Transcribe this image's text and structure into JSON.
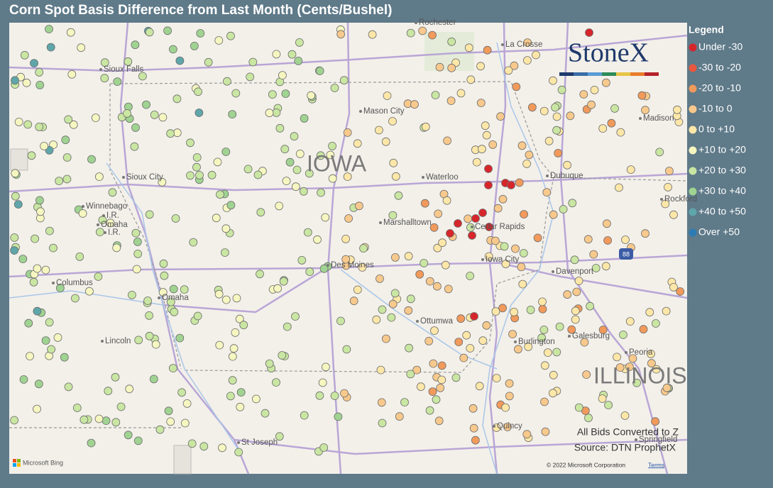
{
  "header": {
    "title": "Corn Spot Basis Difference from Last Month (Cents/Bushel)"
  },
  "legend": {
    "title": "Legend",
    "items": [
      {
        "label": "Under -30",
        "color": "#d7262b"
      },
      {
        "label": "-30 to -20",
        "color": "#e9573d"
      },
      {
        "label": "-20 to -10",
        "color": "#f19a5b"
      },
      {
        "label": "-10 to 0",
        "color": "#f8c98c"
      },
      {
        "label": "0 to +10",
        "color": "#fde7a8"
      },
      {
        "label": "+10 to +20",
        "color": "#f6f6c0"
      },
      {
        "label": "+20 to +30",
        "color": "#c9e6a2"
      },
      {
        "label": "+30 to +40",
        "color": "#a0d391"
      },
      {
        "label": "+40 to +50",
        "color": "#5fa6aa"
      },
      {
        "label": "Over +50",
        "color": "#2d7bb5"
      }
    ]
  },
  "map": {
    "logo": "StoneX",
    "cities": [
      "Rochester",
      "La Crosse",
      "Sioux Falls",
      "Mason City",
      "Madison",
      "Sioux City",
      "Waterloo",
      "Dubuque",
      "Rockford",
      "Winnebago",
      "I.R.",
      "Omaha",
      "I.R.",
      "Marshalltown",
      "Cedar Rapids",
      "Columbus",
      "Des Moines",
      "Iowa City",
      "Davenport",
      "Omaha",
      "Ottumwa",
      "Galesburg",
      "Lincoln",
      "Burlington",
      "Peoria",
      "Quincy",
      "St Joseph",
      "Springfield"
    ],
    "states": [
      "IOWA",
      "ILLINOIS"
    ],
    "shield": "88",
    "notes": [
      "All Bids Converted to Z",
      "Source: DTN ProphetX"
    ],
    "attribution": "Microsoft Bing",
    "copyright": "© 2022 Microsoft Corporation",
    "terms": "Terms"
  }
}
